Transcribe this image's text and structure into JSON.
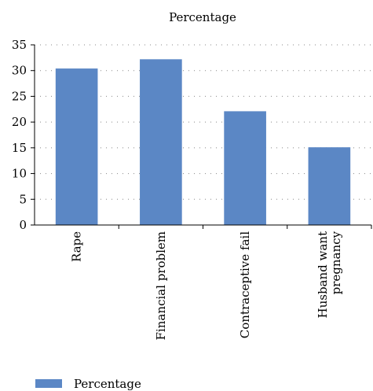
{
  "chart_data": {
    "type": "bar",
    "title": "Percentage",
    "xlabel": "",
    "ylabel": "",
    "categories": [
      "Rape",
      "Financial problem",
      "Contraceptive fail",
      "Husband want pregnancy"
    ],
    "category_lines": [
      [
        "Rape"
      ],
      [
        "Financial problem"
      ],
      [
        "Contraceptive fail"
      ],
      [
        "Husband want",
        "pregnancy"
      ]
    ],
    "series": [
      {
        "name": "Percentage",
        "values": [
          30.4,
          32.2,
          22.1,
          15.1
        ]
      }
    ],
    "ylim": [
      0,
      35
    ],
    "yticks": [
      0,
      5,
      10,
      15,
      20,
      25,
      30,
      35
    ],
    "grid": "dotted horizontal",
    "legend_position": "bottom-left",
    "colors": {
      "bar": "#5b87c5",
      "axis": "#000000",
      "grid": "#888888"
    }
  }
}
